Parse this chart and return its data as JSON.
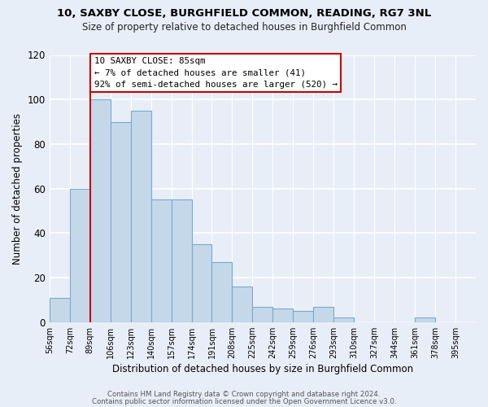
{
  "title1": "10, SAXBY CLOSE, BURGHFIELD COMMON, READING, RG7 3NL",
  "title2": "Size of property relative to detached houses in Burghfield Common",
  "xlabel": "Distribution of detached houses by size in Burghfield Common",
  "ylabel": "Number of detached properties",
  "footer1": "Contains HM Land Registry data © Crown copyright and database right 2024.",
  "footer2": "Contains public sector information licensed under the Open Government Licence v3.0.",
  "bin_labels": [
    "56sqm",
    "72sqm",
    "89sqm",
    "106sqm",
    "123sqm",
    "140sqm",
    "157sqm",
    "174sqm",
    "191sqm",
    "208sqm",
    "225sqm",
    "242sqm",
    "259sqm",
    "276sqm",
    "293sqm",
    "310sqm",
    "327sqm",
    "344sqm",
    "361sqm",
    "378sqm",
    "395sqm"
  ],
  "bar_values": [
    11,
    60,
    100,
    90,
    95,
    55,
    55,
    35,
    27,
    16,
    7,
    6,
    5,
    7,
    2,
    0,
    0,
    0,
    2,
    0,
    0
  ],
  "bar_color": "#c5d8ea",
  "bar_edge_color": "#7aaac8",
  "highlight_color": "#cc0000",
  "ylim": [
    0,
    120
  ],
  "yticks": [
    0,
    20,
    40,
    60,
    80,
    100,
    120
  ],
  "annotation_title": "10 SAXBY CLOSE: 85sqm",
  "annotation_line1": "← 7% of detached houses are smaller (41)",
  "annotation_line2": "92% of semi-detached houses are larger (520) →",
  "annotation_box_color": "#ffffff",
  "annotation_box_edge": "#cc0000",
  "bg_color": "#e8eef8"
}
